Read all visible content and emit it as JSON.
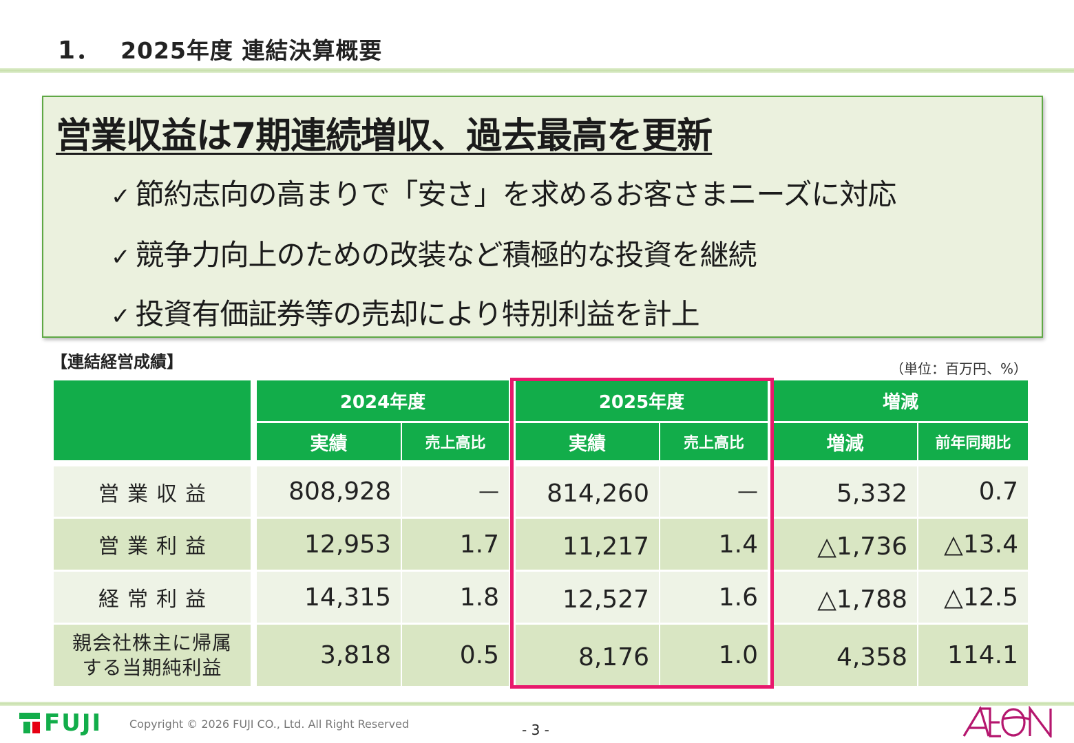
{
  "page": {
    "number_label": "1．",
    "title": "2025年度 連結決算概要"
  },
  "highlight": {
    "headline": "営業収益は7期連続増収、過去最高を更新",
    "check_mark": "✓",
    "bullets": [
      "節約志向の高まりで「安さ」を求めるお客さまニーズに対応",
      "競争力向上のための改装など積極的な投資を継続",
      "投資有価証券等の売却により特別利益を計上"
    ]
  },
  "table": {
    "section_label": "【連結経営成績】",
    "unit": "（単位：百万円、%）",
    "groups": [
      "2024年度",
      "2025年度",
      "増減"
    ],
    "subheaders": [
      "実績",
      "売上高比",
      "実績",
      "売上高比",
      "増減",
      "前年同期比"
    ],
    "rows": [
      {
        "label": "営業収益",
        "values": [
          "808,928",
          "—",
          "814,260",
          "—",
          "5,332",
          "0.7"
        ]
      },
      {
        "label": "営業利益",
        "values": [
          "12,953",
          "1.7",
          "11,217",
          "1.4",
          "△1,736",
          "△13.4"
        ]
      },
      {
        "label": "経常利益",
        "values": [
          "14,315",
          "1.8",
          "12,527",
          "1.6",
          "△1,788",
          "△12.5"
        ]
      },
      {
        "label_line1": "親会社株主に帰属",
        "label_line2": "する当期純利益",
        "values": [
          "3,818",
          "0.5",
          "8,176",
          "1.0",
          "4,358",
          "114.1"
        ]
      }
    ]
  },
  "footer": {
    "company_logo_text": "FUJI",
    "copyright": "Copyright © 2026 FUJI CO., Ltd. All Right Reserved",
    "page_number": "- 3 -",
    "partner_logo_text": "AEON"
  },
  "colors": {
    "header_green": "#12ad4a",
    "highlight_frame": "#e8196c",
    "box_background": "#ebf1de",
    "row_light": "#eef3e6",
    "row_dark": "#d9e6c3"
  }
}
